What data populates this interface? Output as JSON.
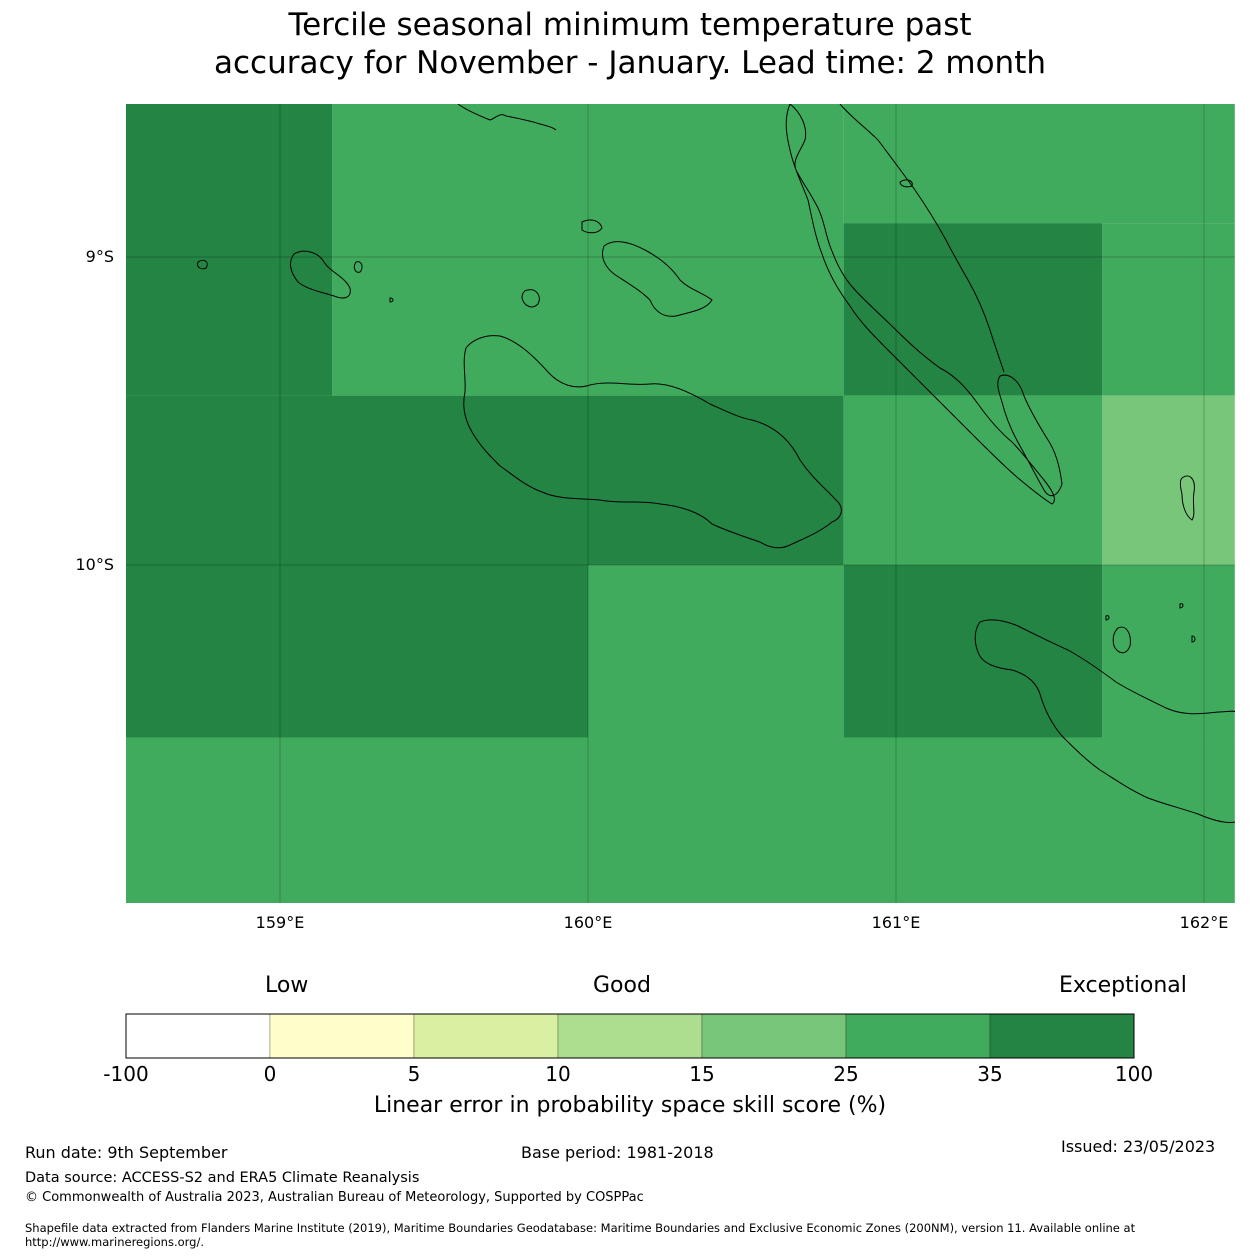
{
  "title_line1": "Tercile seasonal minimum temperature past",
  "title_line2": "accuracy for November - January. Lead time: 2 month",
  "map": {
    "lon_range": [
      158.5,
      162.1
    ],
    "lat_range": [
      -11.1,
      -8.5
    ],
    "lat_ticks": [
      {
        "value": -9,
        "label": "9°S"
      },
      {
        "value": -10,
        "label": "10°S"
      }
    ],
    "lon_ticks": [
      {
        "value": 159,
        "label": "159°E"
      },
      {
        "value": 160,
        "label": "160°E"
      },
      {
        "value": 161,
        "label": "161°E"
      },
      {
        "value": 162,
        "label": "162°E"
      }
    ],
    "cells": [
      {
        "lon": [
          158.5,
          159.17
        ],
        "lat": [
          -9.45,
          -8.5
        ],
        "cat": 6
      },
      {
        "lon": [
          159.17,
          160.83
        ],
        "lat": [
          -9.45,
          -8.5
        ],
        "cat": 5
      },
      {
        "lon": [
          160.83,
          162.1
        ],
        "lat": [
          -8.89,
          -8.5
        ],
        "cat": 5
      },
      {
        "lon": [
          160.83,
          161.67
        ],
        "lat": [
          -9.45,
          -8.89
        ],
        "cat": 6
      },
      {
        "lon": [
          161.67,
          162.1
        ],
        "lat": [
          -9.45,
          -8.89
        ],
        "cat": 5
      },
      {
        "lon": [
          158.5,
          160.83
        ],
        "lat": [
          -10.0,
          -9.45
        ],
        "cat": 6
      },
      {
        "lon": [
          160.83,
          161.67
        ],
        "lat": [
          -10.0,
          -9.45
        ],
        "cat": 5
      },
      {
        "lon": [
          161.67,
          162.1
        ],
        "lat": [
          -10.0,
          -9.45
        ],
        "cat": 4
      },
      {
        "lon": [
          158.5,
          160.0
        ],
        "lat": [
          -10.56,
          -10.0
        ],
        "cat": 6
      },
      {
        "lon": [
          160.0,
          160.83
        ],
        "lat": [
          -10.56,
          -10.0
        ],
        "cat": 5
      },
      {
        "lon": [
          160.83,
          161.67
        ],
        "lat": [
          -10.56,
          -10.0
        ],
        "cat": 6
      },
      {
        "lon": [
          161.67,
          162.1
        ],
        "lat": [
          -10.56,
          -10.0
        ],
        "cat": 5
      },
      {
        "lon": [
          158.5,
          162.1
        ],
        "lat": [
          -11.1,
          -10.56
        ],
        "cat": 5
      }
    ]
  },
  "categories": {
    "low": "Low",
    "good": "Good",
    "exceptional": "Exceptional"
  },
  "colorbar": {
    "bins": [
      {
        "label": "-100",
        "color": "#ffffff"
      },
      {
        "label": "0",
        "color": "#ffffcc"
      },
      {
        "label": "5",
        "color": "#d9f0a3"
      },
      {
        "label": "10",
        "color": "#addd8e"
      },
      {
        "label": "15",
        "color": "#78c679"
      },
      {
        "label": "25",
        "color": "#41ab5d"
      },
      {
        "label": "35",
        "color": "#238443"
      }
    ],
    "last_label": "100",
    "title": "Linear error in probability space skill score (%)"
  },
  "footer": {
    "run_date": "Run date: 9th September",
    "base_period": "Base period: 1981-2018",
    "issued": "Issued: 23/05/2023",
    "data_source": "Data source: ACCESS-S2 and ERA5 Climate Reanalysis",
    "copyright": "© Commonwealth of Australia 2023, Australian Bureau of Meteorology, Supported by COSPPac",
    "shapefile": "Shapefile data extracted from Flanders Marine Institute (2019), Maritime Boundaries Geodatabase: Maritime Boundaries and Exclusive Economic Zones (200NM), version 11. Available online at http://www.marineregions.org/."
  }
}
